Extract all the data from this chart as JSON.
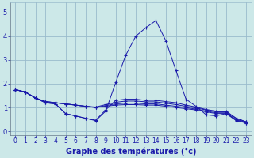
{
  "bg_color": "#cce8e8",
  "grid_color": "#99bbcc",
  "line_color": "#1a1aaa",
  "xlabel": "Graphe des températures (°c)",
  "xlabel_fontsize": 7,
  "ytick_labels": [
    "0",
    "1",
    "2",
    "3",
    "4",
    "5"
  ],
  "ytick_vals": [
    0,
    1,
    2,
    3,
    4,
    5
  ],
  "xtick_labels": [
    "0",
    "1",
    "2",
    "3",
    "4",
    "5",
    "6",
    "7",
    "8",
    "9",
    "10",
    "11",
    "12",
    "13",
    "14",
    "15",
    "16",
    "17",
    "18",
    "19",
    "20",
    "21",
    "22",
    "23"
  ],
  "xtick_vals": [
    0,
    1,
    2,
    3,
    4,
    5,
    6,
    7,
    8,
    9,
    10,
    11,
    12,
    13,
    14,
    15,
    16,
    17,
    18,
    19,
    20,
    21,
    22,
    23
  ],
  "ylim": [
    -0.15,
    5.4
  ],
  "xlim": [
    -0.5,
    23.5
  ],
  "series": [
    {
      "x": [
        0,
        1,
        2,
        3,
        4,
        5,
        6,
        7,
        8,
        9,
        10,
        11,
        12,
        13,
        14,
        15,
        16,
        17,
        18,
        19,
        20,
        21,
        22,
        23
      ],
      "y": [
        1.75,
        1.65,
        1.4,
        1.2,
        1.15,
        0.75,
        0.65,
        0.55,
        0.45,
        0.85,
        2.05,
        3.2,
        4.0,
        4.35,
        4.65,
        3.8,
        2.55,
        1.35,
        1.05,
        0.7,
        0.65,
        0.75,
        0.45,
        0.35
      ]
    },
    {
      "x": [
        0,
        1,
        2,
        3,
        4,
        5,
        6,
        7,
        8,
        9,
        10,
        11,
        12,
        13,
        14,
        15,
        16,
        17,
        18,
        19,
        20,
        21,
        22,
        23
      ],
      "y": [
        1.75,
        1.65,
        1.4,
        1.25,
        1.2,
        1.15,
        1.1,
        1.05,
        1.0,
        1.05,
        1.1,
        1.12,
        1.12,
        1.1,
        1.1,
        1.05,
        1.0,
        0.95,
        0.9,
        0.82,
        0.75,
        0.75,
        0.48,
        0.35
      ]
    },
    {
      "x": [
        0,
        1,
        2,
        3,
        4,
        5,
        6,
        7,
        8,
        9,
        10,
        11,
        12,
        13,
        14,
        15,
        16,
        17,
        18,
        19,
        20,
        21,
        22,
        23
      ],
      "y": [
        1.75,
        1.65,
        1.4,
        1.25,
        1.2,
        1.15,
        1.1,
        1.05,
        1.0,
        1.08,
        1.15,
        1.18,
        1.18,
        1.15,
        1.15,
        1.1,
        1.05,
        1.0,
        0.93,
        0.85,
        0.78,
        0.78,
        0.5,
        0.38
      ]
    },
    {
      "x": [
        0,
        1,
        2,
        3,
        4,
        5,
        6,
        7,
        8,
        9,
        10,
        11,
        12,
        13,
        14,
        15,
        16,
        17,
        18,
        19,
        20,
        21,
        22,
        23
      ],
      "y": [
        1.75,
        1.65,
        1.4,
        1.25,
        1.2,
        1.15,
        1.1,
        1.05,
        1.02,
        1.12,
        1.22,
        1.27,
        1.27,
        1.24,
        1.24,
        1.18,
        1.12,
        1.05,
        0.98,
        0.9,
        0.82,
        0.82,
        0.55,
        0.4
      ]
    },
    {
      "x": [
        0,
        1,
        2,
        3,
        4,
        5,
        6,
        7,
        8,
        9,
        10,
        11,
        12,
        13,
        14,
        15,
        16,
        17,
        18,
        19,
        20,
        21,
        22,
        23
      ],
      "y": [
        1.75,
        1.65,
        1.4,
        1.2,
        1.15,
        0.75,
        0.65,
        0.55,
        0.47,
        0.9,
        1.3,
        1.35,
        1.35,
        1.3,
        1.3,
        1.25,
        1.2,
        1.1,
        1.02,
        0.92,
        0.85,
        0.85,
        0.55,
        0.4
      ]
    }
  ]
}
